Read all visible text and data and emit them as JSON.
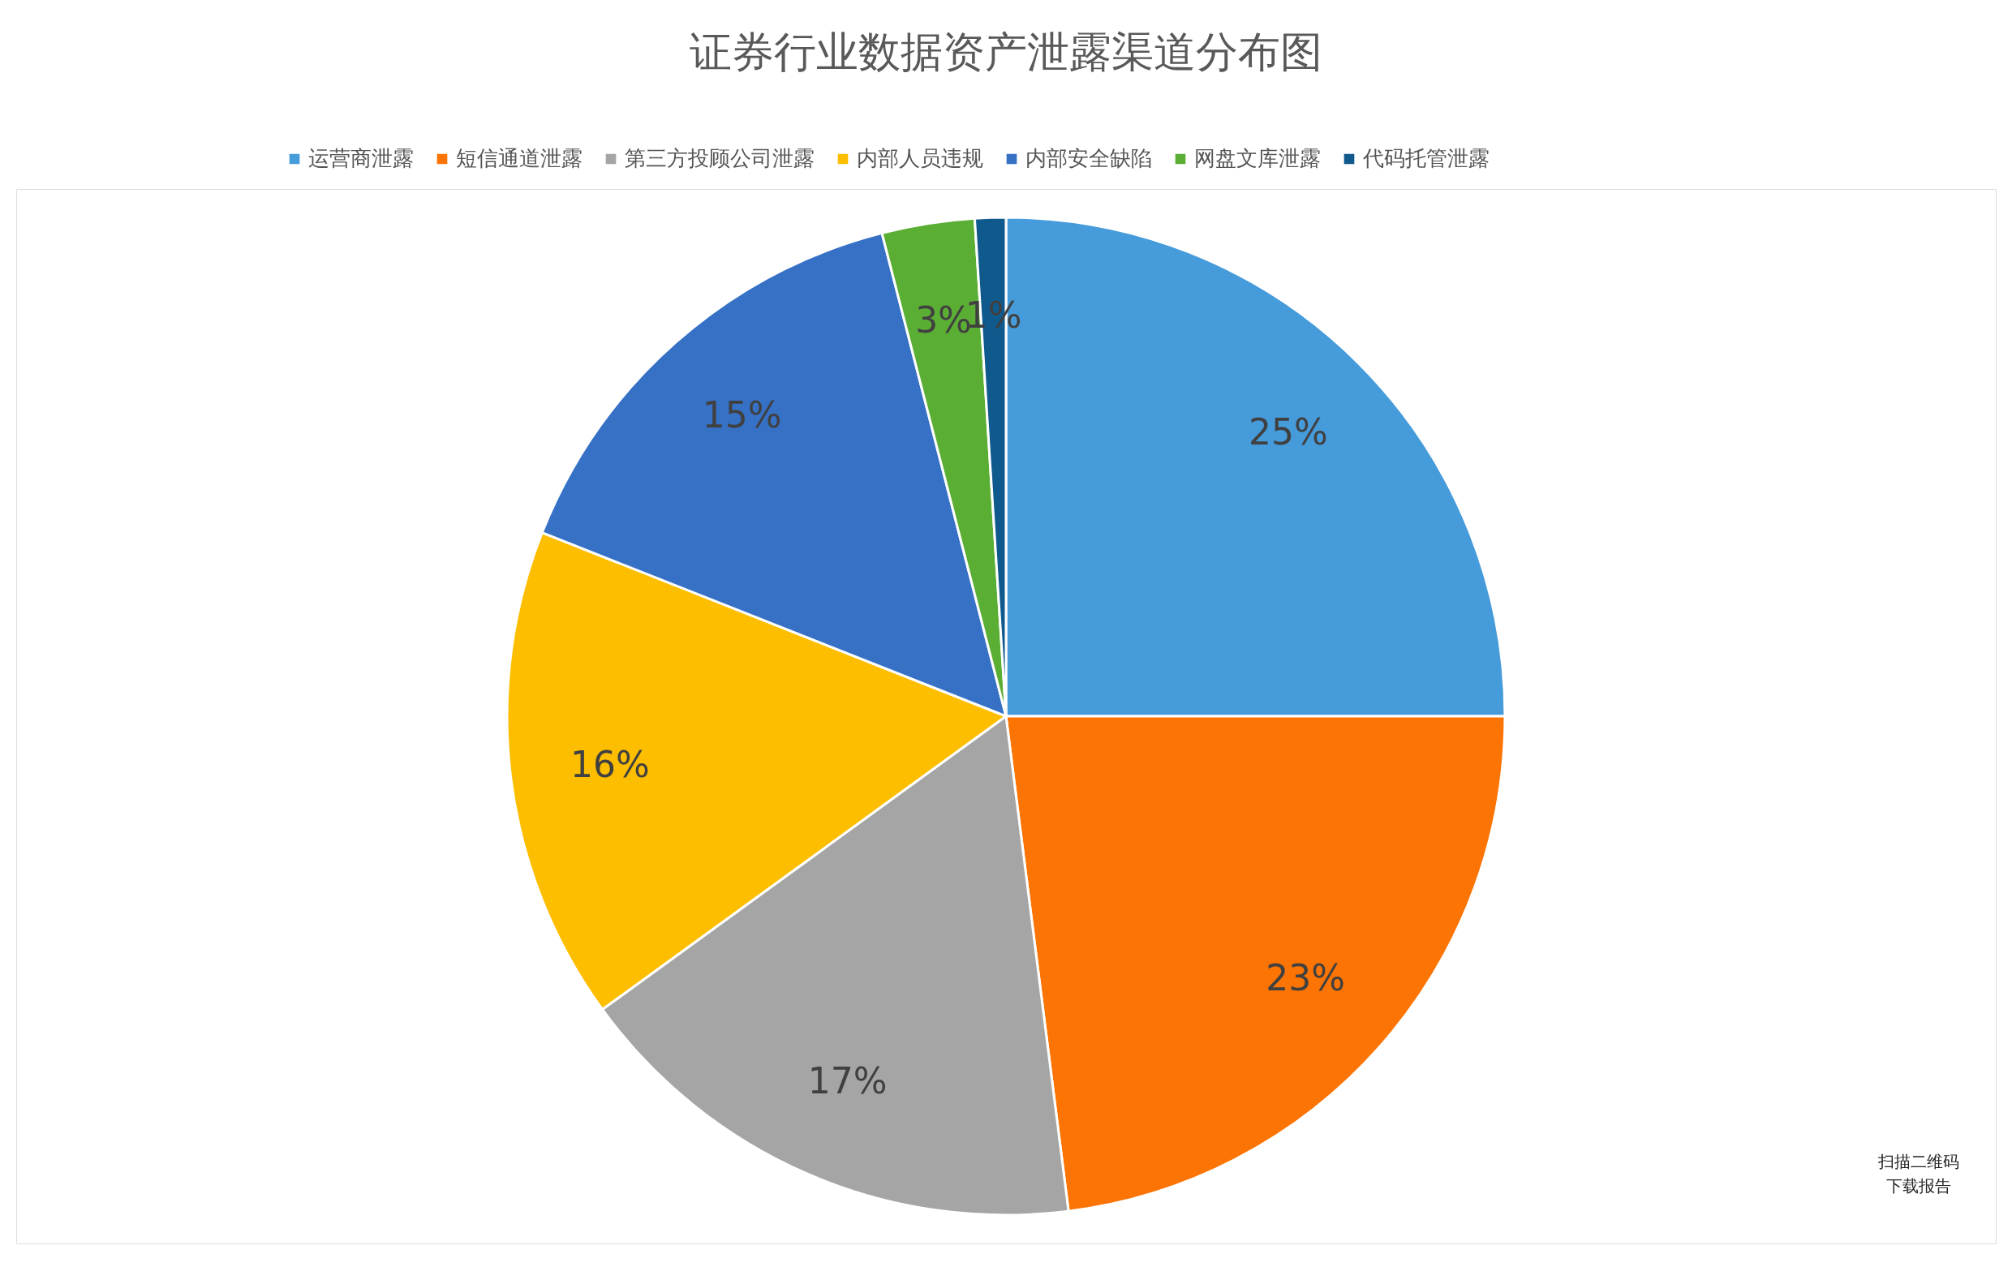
{
  "chart_data": {
    "type": "pie",
    "title": "证券行业数据资产泄露渠道分布图",
    "categories": [
      "运营商泄露",
      "短信通道泄露",
      "第三方投顾公司泄露",
      "内部人员违规",
      "内部安全缺陷",
      "网盘文库泄露",
      "代码托管泄露"
    ],
    "values": [
      25,
      23,
      17,
      16,
      15,
      3,
      1
    ],
    "colors": [
      "#469bdb",
      "#fc7403",
      "#a5a5a5",
      "#fdbe00",
      "#3671c6",
      "#5bae34",
      "#10598c"
    ],
    "value_labels": [
      "25%",
      "23%",
      "17%",
      "16%",
      "15%",
      "3%",
      "1%"
    ],
    "legend": "top",
    "annotations": [
      "扫描二维码",
      "下载报告"
    ]
  }
}
